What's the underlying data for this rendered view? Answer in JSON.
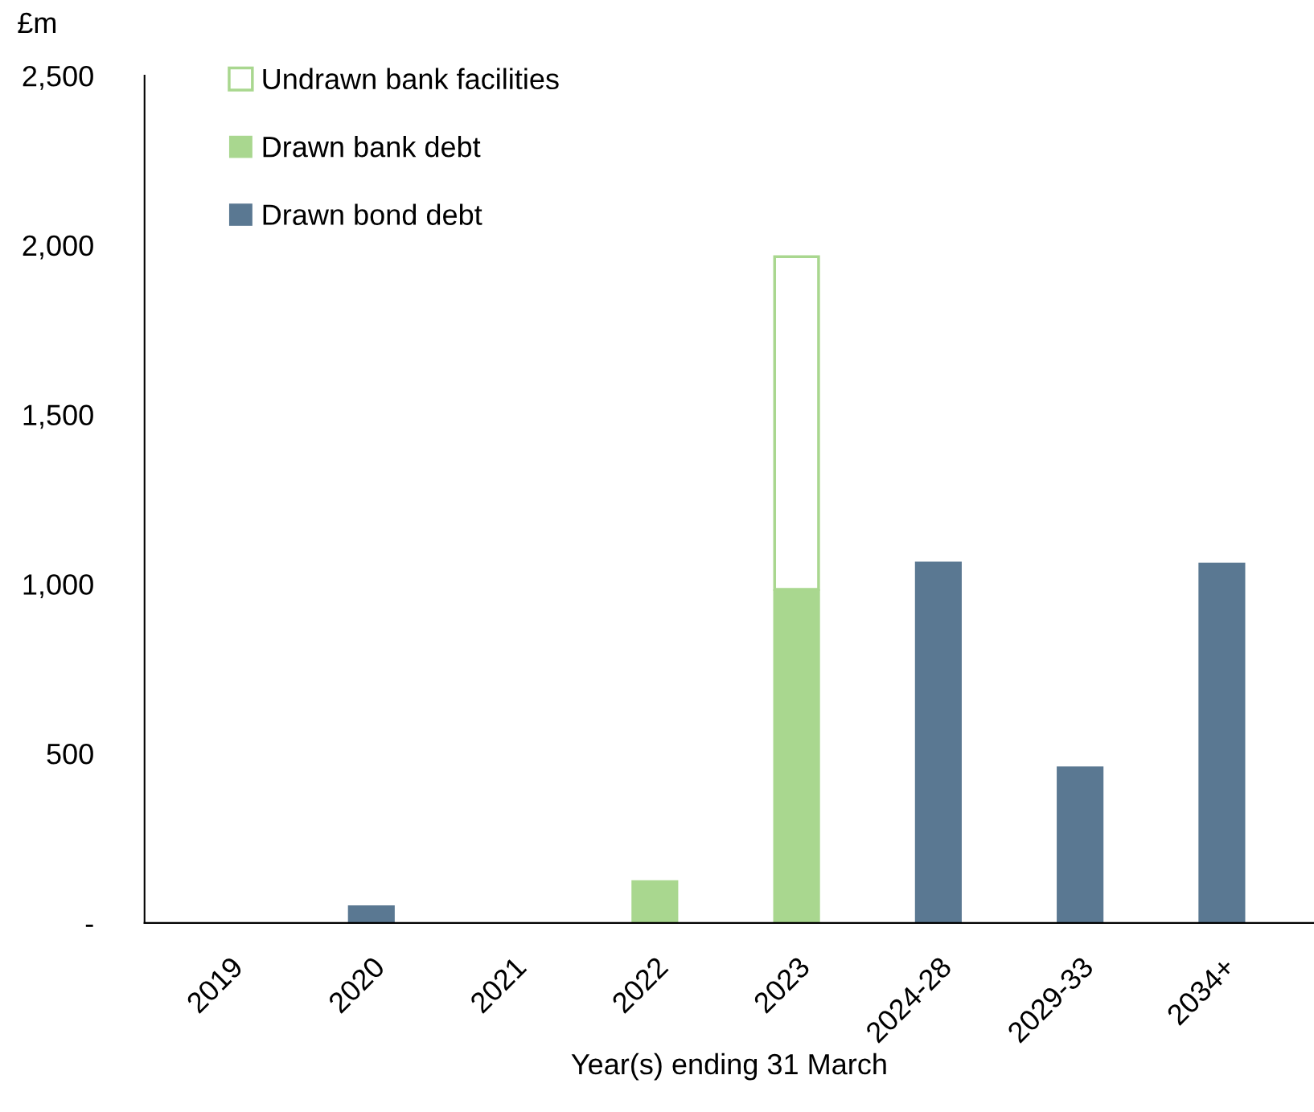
{
  "chart_data": {
    "type": "bar",
    "stacked": true,
    "xlabel": "Year(s) ending 31 March",
    "ylabel": "£m",
    "categories": [
      "2019",
      "2020",
      "2021",
      "2022",
      "2023",
      "2024-28",
      "2029-33",
      "2034+"
    ],
    "series": [
      {
        "name": "Drawn bond debt",
        "color": "#5a7892",
        "values": [
          null,
          52,
          null,
          null,
          null,
          1066,
          462,
          1063
        ]
      },
      {
        "name": "Drawn bank debt",
        "color": "#a9d78f",
        "values": [
          null,
          null,
          null,
          126,
          984,
          null,
          null,
          null
        ]
      },
      {
        "name": "Undrawn bank facilities",
        "color": "#a9d78f",
        "line_style": "solid",
        "values": [
          null,
          null,
          null,
          null,
          982,
          null,
          null,
          null
        ]
      }
    ],
    "ylim": [
      0,
      2500
    ],
    "yticks": [
      {
        "value": 0,
        "label": "-"
      },
      {
        "value": 500,
        "label": "500"
      },
      {
        "value": 1000,
        "label": "1,000"
      },
      {
        "value": 1500,
        "label": "1,500"
      },
      {
        "value": 2000,
        "label": "2,000"
      },
      {
        "value": 2500,
        "label": "2,500"
      }
    ],
    "grid": false,
    "legend": "top left"
  }
}
